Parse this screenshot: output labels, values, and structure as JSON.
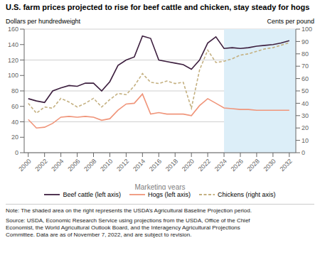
{
  "chart_data": {
    "type": "line",
    "title": "U.S. farm prices projected to rise for beef cattle and chicken, stay steady for hogs",
    "xlabel": "Marketing years",
    "ylabel": "Dollars per hundredweight",
    "y2label": "Cents per pound",
    "x": [
      2000,
      2001,
      2002,
      2003,
      2004,
      2005,
      2006,
      2007,
      2008,
      2009,
      2010,
      2011,
      2012,
      2013,
      2014,
      2015,
      2016,
      2017,
      2018,
      2019,
      2020,
      2021,
      2022,
      2023,
      2024,
      2025,
      2026,
      2027,
      2028,
      2029,
      2030,
      2031,
      2032
    ],
    "series": [
      {
        "name": "Beef cattle (left axis)",
        "color": "#3d1f3f",
        "line_style": "solid",
        "axis": "y",
        "values": [
          70,
          67,
          65,
          80,
          84,
          87,
          86,
          90,
          90,
          80,
          92,
          113,
          120,
          124,
          151,
          148,
          120,
          118,
          116,
          114,
          108,
          120,
          142,
          150,
          135,
          136,
          135,
          136,
          138,
          139,
          140,
          142,
          145
        ]
      },
      {
        "name": "Hogs (left axis)",
        "color": "#f0957a",
        "line_style": "solid",
        "axis": "y",
        "values": [
          43,
          32,
          33,
          38,
          46,
          47,
          46,
          47,
          46,
          42,
          44,
          55,
          63,
          64,
          76,
          50,
          52,
          50,
          50,
          50,
          48,
          61,
          70,
          64,
          58,
          57,
          56,
          56,
          55,
          55,
          55,
          55,
          55
        ]
      },
      {
        "name": "Chickens (right axis)",
        "color": "#c4b080",
        "line_style": "dashed",
        "axis": "y2",
        "values": [
          40,
          32,
          37,
          36,
          44,
          41,
          37,
          40,
          44,
          37,
          43,
          48,
          47,
          54,
          64,
          57,
          56,
          58,
          56,
          57,
          36,
          67,
          83,
          73,
          74,
          76,
          79,
          80,
          82,
          84,
          85,
          87,
          89
        ]
      }
    ],
    "xlim": [
      1999.5,
      2032.8
    ],
    "xticks": [
      2000,
      2002,
      2004,
      2006,
      2008,
      2010,
      2012,
      2014,
      2016,
      2018,
      2020,
      2022,
      2024,
      2026,
      2028,
      2030,
      2032
    ],
    "ylim": [
      0,
      160
    ],
    "yticks": [
      0,
      20,
      40,
      60,
      80,
      100,
      120,
      140,
      160
    ],
    "y2lim": [
      0,
      100
    ],
    "y2ticks": [
      0,
      10,
      20,
      30,
      40,
      50,
      60,
      70,
      80,
      90,
      100
    ],
    "shaded_region": {
      "x": [
        2024,
        2033
      ],
      "color": "#dceef8"
    },
    "grid": true,
    "legend": "bottom",
    "note": "Note: The shaded area on the right represents the USDA’s Agricultural Baseline Projection period.",
    "source": "Source: USDA, Economic Research Service using projections from the USDA, Office of the Chief\nEconomist, the World Agricultural Outlook Board, and the Interagency Agricultural Projections\nCommittee. Data are as of November 7, 2022, and are subject to revision."
  }
}
